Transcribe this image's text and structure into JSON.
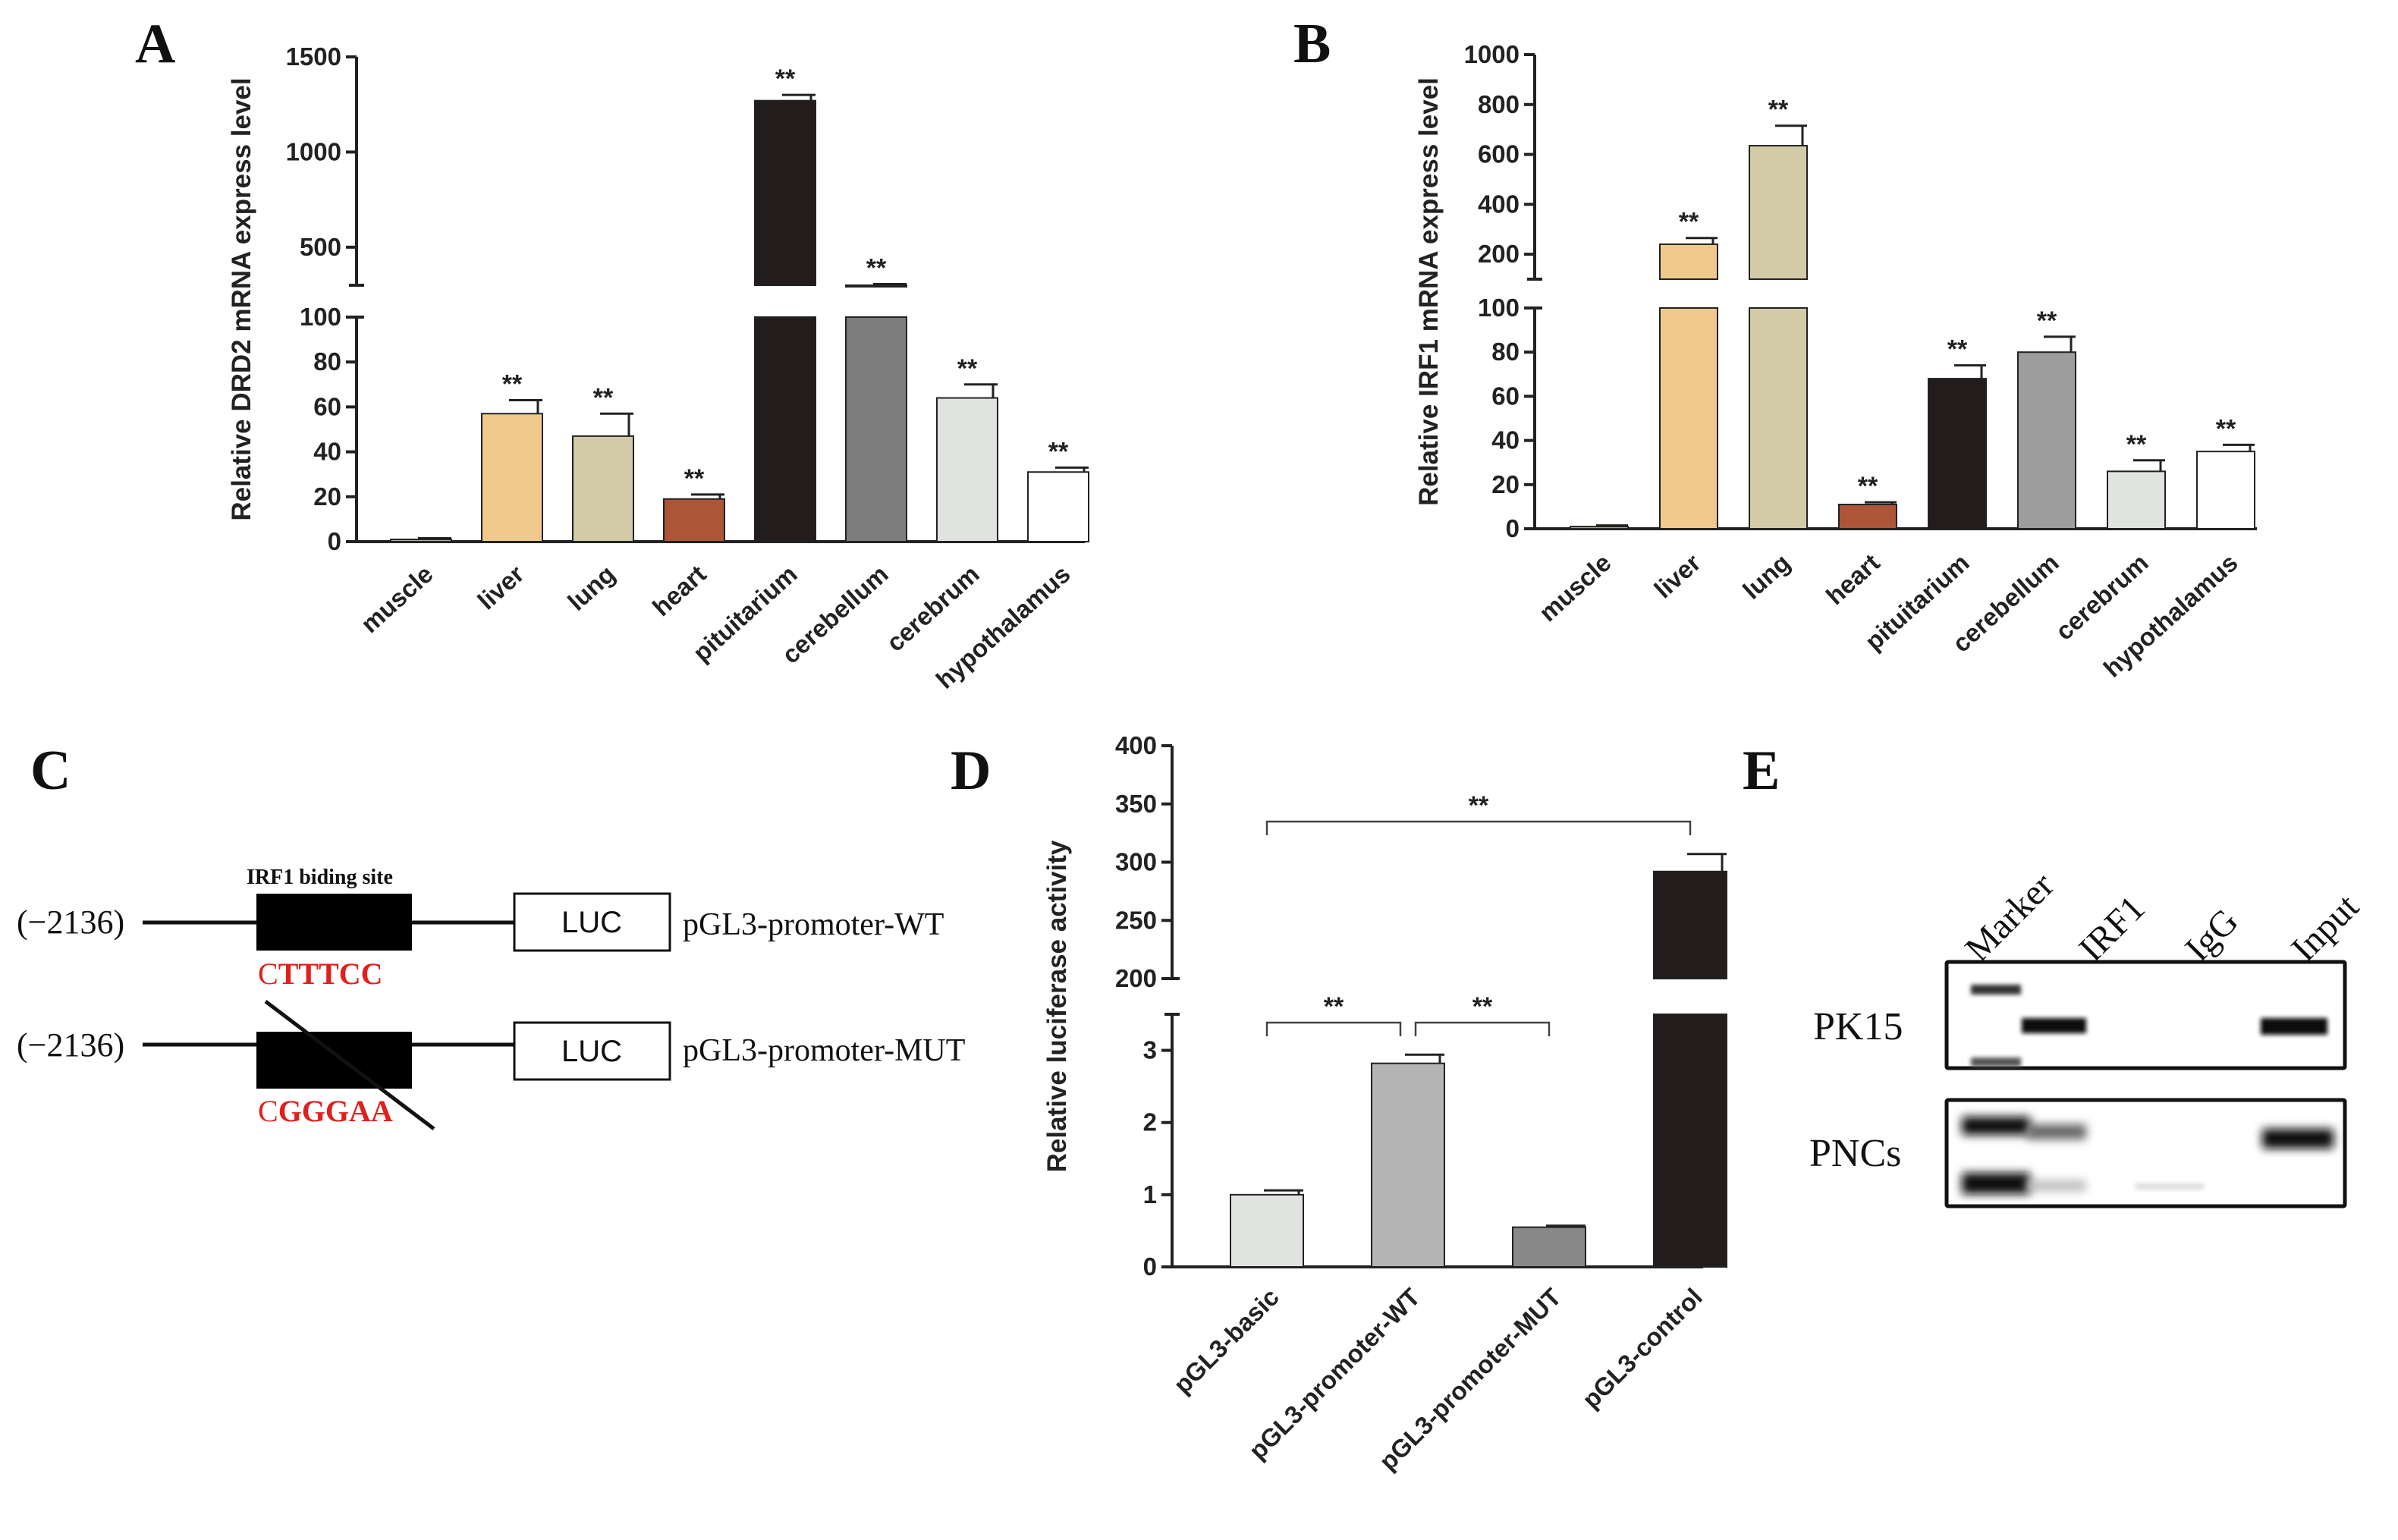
{
  "chart_data": [
    {
      "id": "A",
      "type": "bar",
      "panel_label": "A",
      "ylabel": "Relative DRD2 mRNA express level",
      "categories": [
        "muscle",
        "liver",
        "lung",
        "heart",
        "pituitarium",
        "cerebellum",
        "cerebrum",
        "hypothalamus"
      ],
      "values": [
        1,
        57,
        47,
        19,
        1270,
        300,
        64,
        31
      ],
      "errors": [
        0.5,
        6,
        10,
        2,
        30,
        6,
        6,
        2
      ],
      "significance": [
        "",
        "**",
        "**",
        "**",
        "**",
        "**",
        "**",
        "**"
      ],
      "colors": [
        "#b9b4a4",
        "#f0ca8c",
        "#d3cba8",
        "#ac5538",
        "#231c1c",
        "#7d7d7d",
        "#e1e3e1",
        "#ffffff"
      ],
      "axis_break": {
        "lower_range": [
          0,
          100
        ],
        "upper_range": [
          300,
          1500
        ]
      },
      "lower_ticks": [
        0,
        20,
        40,
        60,
        80,
        100
      ],
      "upper_ticks": [
        500,
        1000,
        1500
      ]
    },
    {
      "id": "B",
      "type": "bar",
      "panel_label": "B",
      "ylabel": "Relative IRF1 mRNA express level",
      "categories": [
        "muscle",
        "liver",
        "lung",
        "heart",
        "pituitarium",
        "cerebellum",
        "cerebrum",
        "hypothalamus"
      ],
      "values": [
        1,
        240,
        635,
        11,
        68,
        80,
        26,
        35
      ],
      "errors": [
        0.5,
        25,
        80,
        1,
        6,
        7,
        5,
        3
      ],
      "significance": [
        "",
        "**",
        "**",
        "**",
        "**",
        "**",
        "**",
        "**"
      ],
      "colors": [
        "#b9b4a4",
        "#f0ca8c",
        "#d3cba8",
        "#ac5538",
        "#231c1c",
        "#9d9d9d",
        "#e1e3e1",
        "#ffffff"
      ],
      "axis_break": {
        "lower_range": [
          0,
          100
        ],
        "upper_range": [
          100,
          1000
        ]
      },
      "lower_ticks": [
        0,
        20,
        40,
        60,
        80,
        100
      ],
      "upper_ticks": [
        200,
        400,
        600,
        800,
        1000
      ]
    },
    {
      "id": "D",
      "type": "bar",
      "panel_label": "D",
      "ylabel": "Relative luciferase activity",
      "categories": [
        "pGL3-basic",
        "pGL3-promoter-WT",
        "pGL3-promoter-MUT",
        "pGL3-control"
      ],
      "values": [
        1.0,
        2.82,
        0.55,
        292
      ],
      "errors": [
        0.06,
        0.12,
        0.02,
        15
      ],
      "colors": [
        "#e1e3e1",
        "#b4b4b4",
        "#888888",
        "#231c1c"
      ],
      "axis_break": {
        "lower_range": [
          0,
          3.5
        ],
        "upper_range": [
          200,
          400
        ]
      },
      "lower_ticks": [
        0,
        1,
        2,
        3
      ],
      "upper_ticks": [
        200,
        250,
        300,
        350,
        400
      ],
      "comparisons": [
        {
          "from": 0,
          "to": 3,
          "label": "**"
        },
        {
          "from": 0,
          "to": 1,
          "label": "**"
        },
        {
          "from": 1,
          "to": 2,
          "label": "**"
        }
      ]
    }
  ],
  "panel_c": {
    "panel_label": "C",
    "site_label": "IRF1 biding site",
    "constructs": [
      {
        "position": "(−2136)",
        "luc": "LUC",
        "name": "pGL3-promoter-WT",
        "seq_prefix": "C",
        "seq_motif": "TTTCC"
      },
      {
        "position": "(−2136)",
        "luc": "LUC",
        "name": "pGL3-promoter-MUT",
        "seq_prefix": "C",
        "seq_motif": "GGGAA"
      }
    ],
    "motif_color": "#e0201d"
  },
  "panel_e": {
    "panel_label": "E",
    "lanes": [
      "Marker",
      "IRF1",
      "IgG",
      "Input"
    ],
    "rows": [
      "PK15",
      "PNCs"
    ]
  }
}
